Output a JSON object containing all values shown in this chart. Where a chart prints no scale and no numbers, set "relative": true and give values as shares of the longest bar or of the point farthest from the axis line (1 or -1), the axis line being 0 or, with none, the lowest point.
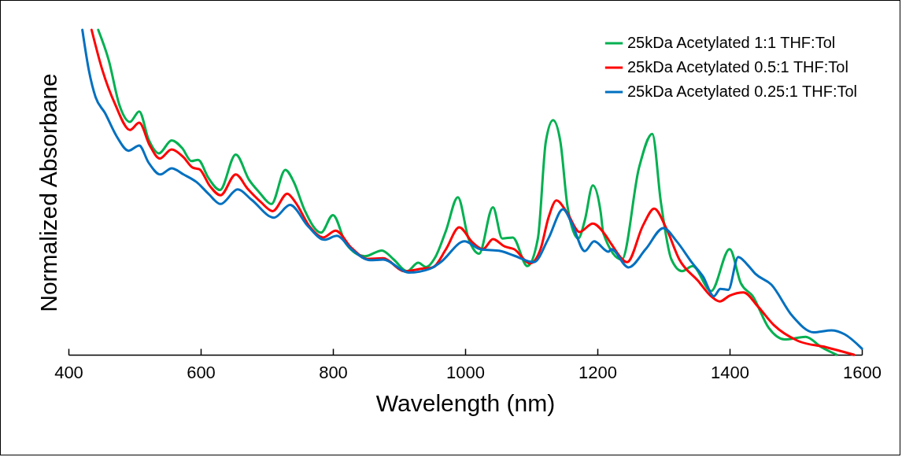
{
  "chart_data": {
    "type": "line",
    "xlabel": "Wavelength (nm)",
    "ylabel": "Normalized Absorbane",
    "relative": true,
    "xlim": [
      400,
      1600
    ],
    "xticks": [
      400,
      600,
      800,
      1000,
      1200,
      1400,
      1600
    ],
    "legend": "top right",
    "series": [
      {
        "name": "25kDa Acetylated 1:1 THF:Tol",
        "color": "#00b050",
        "x": [
          445,
          461,
          477,
          493,
          507,
          521,
          537,
          556,
          572,
          586,
          596,
          612,
          629,
          653,
          673,
          689,
          707,
          728,
          741,
          757,
          782,
          800,
          820,
          848,
          874,
          892,
          912,
          929,
          941,
          955,
          971,
          989,
          1005,
          1021,
          1042,
          1056,
          1072,
          1094,
          1110,
          1122,
          1133,
          1144,
          1155,
          1171,
          1181,
          1193,
          1205,
          1209,
          1237,
          1263,
          1283,
          1296,
          1312,
          1328,
          1344,
          1372,
          1400,
          1417,
          1435,
          1459,
          1483,
          1515,
          1539,
          1562
        ],
        "values": [
          1.0,
          0.906,
          0.769,
          0.717,
          0.749,
          0.664,
          0.62,
          0.66,
          0.636,
          0.596,
          0.6,
          0.543,
          0.507,
          0.616,
          0.539,
          0.499,
          0.464,
          0.569,
          0.531,
          0.446,
          0.376,
          0.43,
          0.341,
          0.303,
          0.321,
          0.293,
          0.257,
          0.283,
          0.27,
          0.301,
          0.382,
          0.485,
          0.358,
          0.311,
          0.454,
          0.358,
          0.361,
          0.273,
          0.358,
          0.656,
          0.722,
          0.656,
          0.454,
          0.358,
          0.414,
          0.521,
          0.438,
          0.374,
          0.293,
          0.576,
          0.68,
          0.47,
          0.293,
          0.257,
          0.273,
          0.196,
          0.325,
          0.22,
          0.18,
          0.083,
          0.047,
          0.055,
          0.023,
          0.0
        ]
      },
      {
        "name": "25kDa Acetylated 0.5:1 THF:Tol",
        "color": "#ff0000",
        "x": [
          435,
          451,
          471,
          493,
          507,
          523,
          538,
          556,
          574,
          588,
          598,
          614,
          630,
          653,
          671,
          691,
          709,
          731,
          743,
          765,
          785,
          804,
          828,
          852,
          876,
          908,
          935,
          951,
          971,
          991,
          1011,
          1027,
          1042,
          1060,
          1074,
          1098,
          1114,
          1126,
          1138,
          1154,
          1173,
          1193,
          1213,
          1221,
          1245,
          1269,
          1286,
          1304,
          1324,
          1352,
          1372,
          1385,
          1400,
          1421,
          1443,
          1467,
          1503,
          1546,
          1588
        ],
        "values": [
          1.0,
          0.878,
          0.769,
          0.692,
          0.714,
          0.644,
          0.604,
          0.632,
          0.608,
          0.576,
          0.571,
          0.519,
          0.491,
          0.555,
          0.511,
          0.47,
          0.442,
          0.496,
          0.47,
          0.394,
          0.361,
          0.382,
          0.329,
          0.295,
          0.297,
          0.257,
          0.265,
          0.269,
          0.325,
          0.392,
          0.346,
          0.325,
          0.356,
          0.333,
          0.325,
          0.281,
          0.325,
          0.422,
          0.475,
          0.438,
          0.378,
          0.404,
          0.366,
          0.341,
          0.285,
          0.398,
          0.45,
          0.39,
          0.293,
          0.228,
          0.18,
          0.164,
          0.182,
          0.192,
          0.148,
          0.091,
          0.043,
          0.023,
          0.0
        ]
      },
      {
        "name": "25kDa Acetylated 0.25:1 THF:Tol",
        "color": "#0070c0",
        "x": [
          421,
          431,
          441,
          455,
          473,
          491,
          507,
          521,
          539,
          556,
          574,
          594,
          612,
          630,
          656,
          677,
          711,
          735,
          763,
          787,
          806,
          828,
          856,
          876,
          915,
          947,
          963,
          999,
          1023,
          1054,
          1074,
          1104,
          1126,
          1148,
          1161,
          1181,
          1195,
          1217,
          1221,
          1247,
          1273,
          1300,
          1320,
          1344,
          1360,
          1376,
          1386,
          1398,
          1413,
          1427,
          1439,
          1463,
          1495,
          1527,
          1554,
          1574,
          1600
        ],
        "values": [
          1.0,
          0.874,
          0.793,
          0.745,
          0.672,
          0.628,
          0.644,
          0.592,
          0.555,
          0.574,
          0.555,
          0.531,
          0.495,
          0.464,
          0.509,
          0.477,
          0.422,
          0.461,
          0.394,
          0.354,
          0.366,
          0.325,
          0.291,
          0.293,
          0.253,
          0.265,
          0.285,
          0.349,
          0.325,
          0.319,
          0.305,
          0.285,
          0.358,
          0.448,
          0.406,
          0.319,
          0.349,
          0.317,
          0.325,
          0.269,
          0.325,
          0.39,
          0.349,
          0.281,
          0.24,
          0.18,
          0.203,
          0.2,
          0.301,
          0.277,
          0.249,
          0.216,
          0.119,
          0.069,
          0.075,
          0.063,
          0.019
        ]
      }
    ]
  }
}
